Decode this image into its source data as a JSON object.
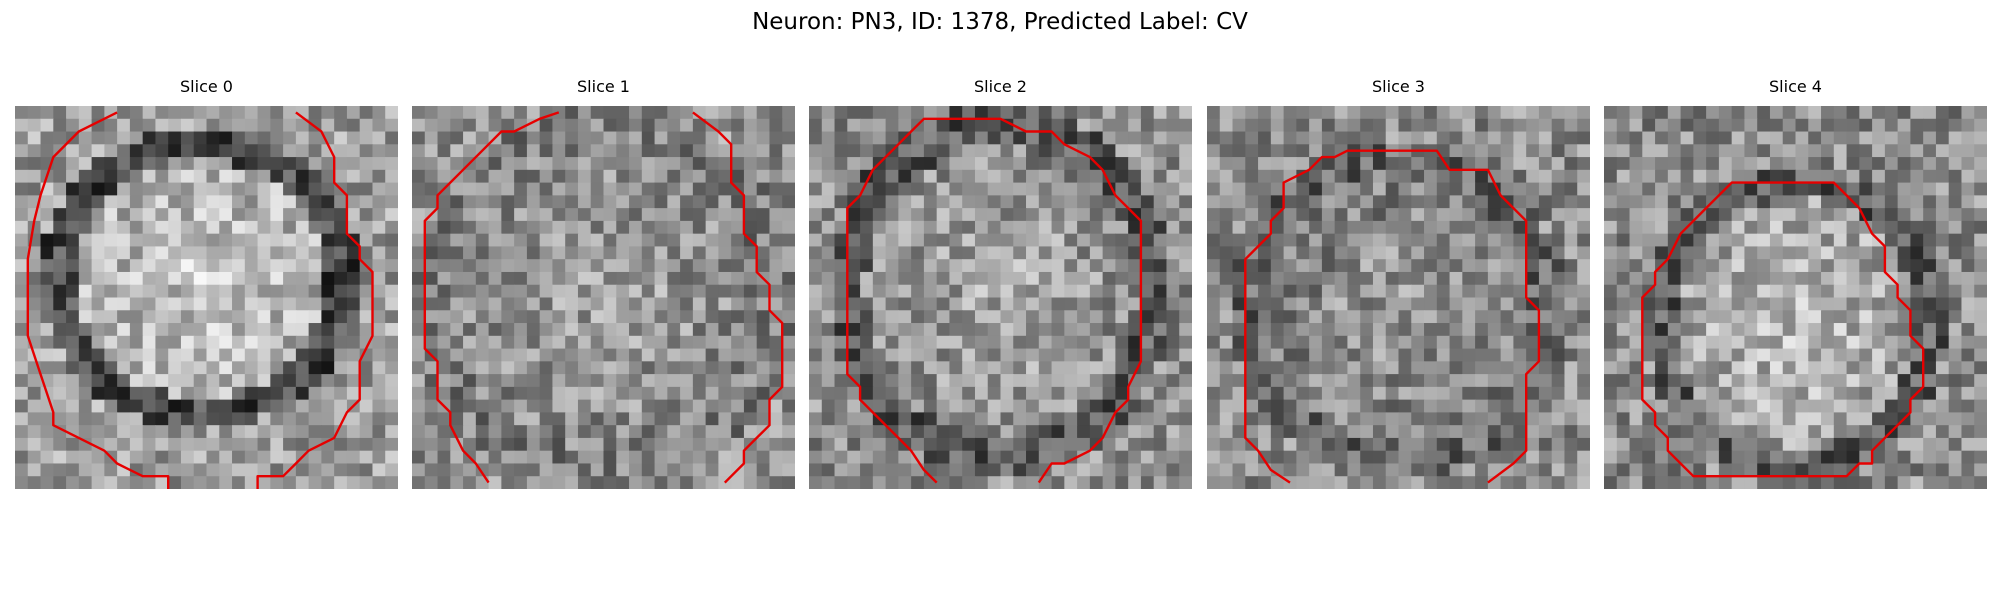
{
  "figure": {
    "title": "Neuron: PN3, ID: 1378, Predicted Label: CV"
  },
  "panels": [
    {
      "title": "Slice 0"
    },
    {
      "title": "Slice 1"
    },
    {
      "title": "Slice 2"
    },
    {
      "title": "Slice 3"
    },
    {
      "title": "Slice 4"
    }
  ],
  "colors": {
    "contour": "#e60000",
    "background": "#ffffff"
  }
}
